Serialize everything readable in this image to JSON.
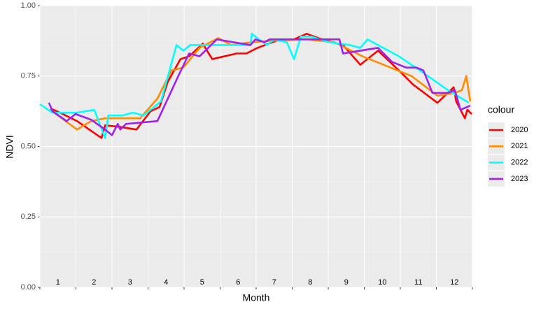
{
  "chart_data": {
    "type": "line",
    "x_label": "Month",
    "y_label": "NDVI",
    "legend_title": "colour",
    "month_labels": [
      "1",
      "2",
      "3",
      "4",
      "5",
      "6",
      "7",
      "8",
      "9",
      "10",
      "11",
      "12"
    ],
    "xlim": [
      0,
      12
    ],
    "xticks": [
      0,
      1,
      2,
      3,
      4,
      5,
      6,
      7,
      8,
      9,
      10,
      11,
      12
    ],
    "ylim": [
      0,
      1
    ],
    "yticks": [
      {
        "value": 0,
        "label": "0.00"
      },
      {
        "value": 0.25,
        "label": "0.25"
      },
      {
        "value": 0.5,
        "label": "0.50"
      },
      {
        "value": 0.75,
        "label": "0.75"
      },
      {
        "value": 1,
        "label": "1.00"
      }
    ],
    "yminor_ticks": [
      0.125,
      0.375,
      0.625,
      0.875
    ],
    "grid": true,
    "legend_position": "right",
    "series": [
      {
        "name": "2020",
        "color": "#ff0000",
        "x": [
          0.29,
          0.64,
          1.03,
          1.71,
          1.81,
          2.19,
          2.68,
          3.07,
          3.32,
          3.55,
          3.9,
          4.14,
          4.52,
          4.78,
          5.46,
          5.73,
          6.04,
          6.66,
          7.05,
          7.4,
          7.83,
          8.41,
          8.89,
          9.38,
          9.96,
          10.35,
          11.03,
          11.48,
          11.55,
          11.79,
          11.86,
          11.98
        ],
        "values": [
          0.635,
          0.615,
          0.59,
          0.53,
          0.575,
          0.57,
          0.56,
          0.625,
          0.64,
          0.73,
          0.81,
          0.82,
          0.865,
          0.81,
          0.83,
          0.83,
          0.85,
          0.88,
          0.88,
          0.9,
          0.88,
          0.86,
          0.79,
          0.84,
          0.77,
          0.72,
          0.655,
          0.71,
          0.66,
          0.6,
          0.63,
          0.615
        ]
      },
      {
        "name": "2021",
        "color": "#ff8c00",
        "x": [
          0.29,
          1.03,
          1.42,
          1.81,
          2.78,
          3.26,
          3.65,
          3.98,
          4.43,
          4.95,
          5.3,
          5.86,
          6.43,
          7.4,
          8.17,
          8.95,
          9.73,
          10.31,
          11.03,
          11.51,
          11.71,
          11.83,
          11.94
        ],
        "values": [
          0.63,
          0.56,
          0.59,
          0.6,
          0.6,
          0.67,
          0.77,
          0.78,
          0.85,
          0.885,
          0.86,
          0.87,
          0.875,
          0.88,
          0.87,
          0.82,
          0.78,
          0.75,
          0.68,
          0.69,
          0.7,
          0.75,
          0.66
        ]
      },
      {
        "name": "2022",
        "color": "#00ffff",
        "x": [
          0,
          0.35,
          1.03,
          1.51,
          1.81,
          1.9,
          2.29,
          2.58,
          2.87,
          3.07,
          3.36,
          3.79,
          3.98,
          4.17,
          4.91,
          5.84,
          5.88,
          6.08,
          6.31,
          6.5,
          6.85,
          7.05,
          7.24,
          7.53,
          8.02,
          8.6,
          8.89,
          9.09,
          9.38,
          9.96,
          10.54,
          11.32,
          11.9
        ],
        "values": [
          0.65,
          0.62,
          0.62,
          0.63,
          0.53,
          0.61,
          0.61,
          0.62,
          0.61,
          0.63,
          0.66,
          0.86,
          0.84,
          0.86,
          0.86,
          0.86,
          0.9,
          0.88,
          0.86,
          0.88,
          0.87,
          0.81,
          0.89,
          0.89,
          0.87,
          0.86,
          0.85,
          0.88,
          0.86,
          0.82,
          0.77,
          0.7,
          0.655
        ]
      },
      {
        "name": "2023",
        "color": "#a020f0",
        "x": [
          0.25,
          0.35,
          0.74,
          0.99,
          1.42,
          1.81,
          2.0,
          2.16,
          2.23,
          2.39,
          3.26,
          3.84,
          4.14,
          4.43,
          4.91,
          5.84,
          5.98,
          6.23,
          6.37,
          7.24,
          8.31,
          8.41,
          9.38,
          9.77,
          10.16,
          10.45,
          10.64,
          10.89,
          11.32,
          11.51,
          11.67,
          11.94
        ],
        "values": [
          0.655,
          0.625,
          0.59,
          0.615,
          0.595,
          0.56,
          0.54,
          0.58,
          0.56,
          0.58,
          0.59,
          0.75,
          0.83,
          0.82,
          0.88,
          0.86,
          0.88,
          0.87,
          0.88,
          0.88,
          0.88,
          0.83,
          0.85,
          0.8,
          0.78,
          0.78,
          0.77,
          0.69,
          0.69,
          0.7,
          0.63,
          0.645
        ]
      }
    ]
  }
}
